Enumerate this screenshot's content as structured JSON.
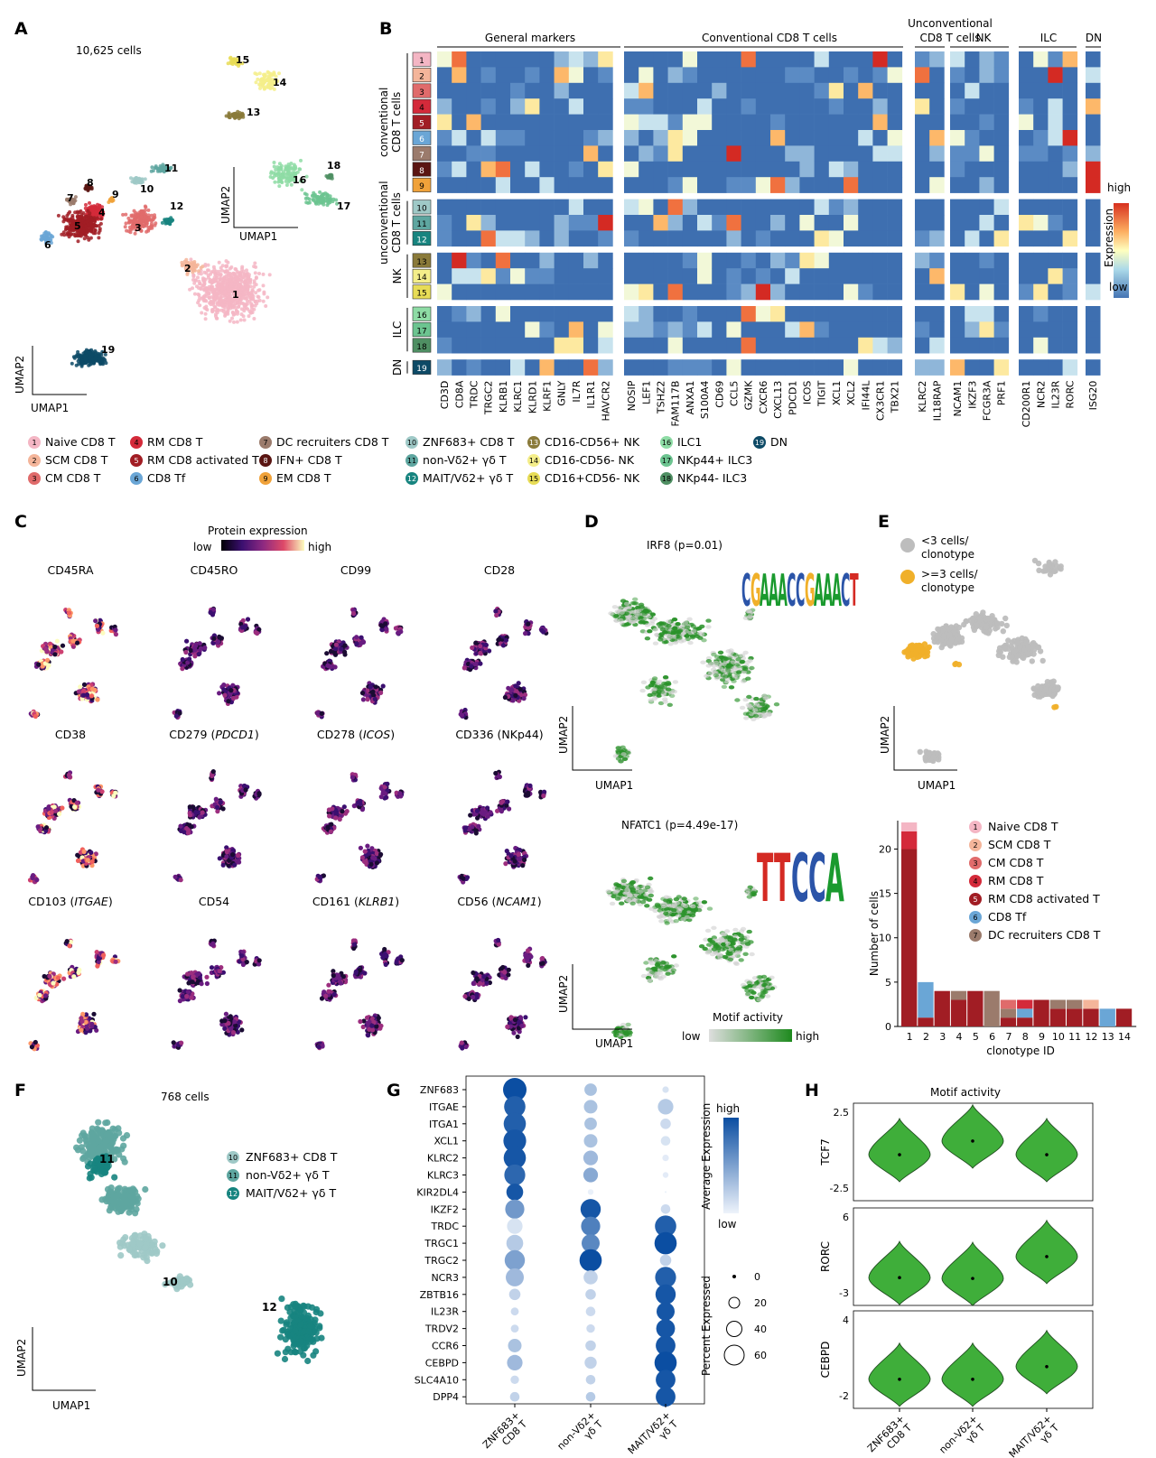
{
  "colors": {
    "c1": "#f4b6c4",
    "c2": "#f4b59a",
    "c3": "#e06b6b",
    "c4": "#d42a3a",
    "c5": "#a11d24",
    "c6": "#6aa6d6",
    "c7": "#9b7b6c",
    "c8": "#5a1512",
    "c9": "#f0a23a",
    "c10": "#9fc9c7",
    "c11": "#5ea6a0",
    "c12": "#17847f",
    "c13": "#8a7a3a",
    "c14": "#f4ee8a",
    "c15": "#e7dc56",
    "c16": "#8edca5",
    "c17": "#6cc490",
    "c18": "#4f8f63",
    "c19": "#0d4a66",
    "green": "#3fae3a",
    "gray": "#bdbdbd",
    "orange": "#f0b02a",
    "dotblue": "#1b5ea8"
  },
  "panel_labels": {
    "A": "A",
    "B": "B",
    "C": "C",
    "D": "D",
    "E": "E",
    "F": "F",
    "G": "G",
    "H": "H"
  },
  "panelA": {
    "cell_count": "10,625 cells",
    "umap1": "UMAP1",
    "umap2": "UMAP2",
    "cluster_numbers": [
      "1",
      "2",
      "3",
      "4",
      "5",
      "6",
      "7",
      "8",
      "9",
      "10",
      "11",
      "12",
      "13",
      "14",
      "15",
      "16",
      "17",
      "18",
      "19"
    ]
  },
  "panelB": {
    "groups": [
      "General markers",
      "Conventional CD8 T cells",
      "Unconventional",
      "CD8 T cells",
      "NK",
      "ILC",
      "DN"
    ],
    "row_groups": [
      "conventional",
      "CD8 T cells",
      "unconventional",
      "CD8 T cells",
      "NK",
      "ILC",
      "DN"
    ],
    "legend_title": "Expression",
    "legend_high": "high",
    "legend_low": "low",
    "genes_general": [
      "CD3D",
      "CD8A",
      "TRDC",
      "TRGC2",
      "KLRB1",
      "KLRC1",
      "KLRD1",
      "KLRF1",
      "GNLY",
      "IL7R",
      "IL1R1",
      "HAVCR2"
    ],
    "genes_conv": [
      "NOSIP",
      "LEF1",
      "TSHZ2",
      "FAM117B",
      "ANXA1",
      "S100A4",
      "CD69",
      "CCL5",
      "GZMK",
      "CXCR6",
      "CXCL13",
      "PDCD1",
      "ICOS",
      "TIGIT",
      "XCL1",
      "XCL2",
      "IFI44L",
      "CX3CR1",
      "TBX21"
    ],
    "genes_unconv": [
      "KLRC2",
      "IL18RAP"
    ],
    "genes_nk": [
      "NCAM1",
      "IKZF3",
      "FCGR3A",
      "PRF1"
    ],
    "genes_ilc": [
      "CD200R1",
      "NCR2",
      "IL23R",
      "RORC"
    ],
    "genes_dn": [
      "ISG20"
    ],
    "rows": [
      "1",
      "2",
      "3",
      "4",
      "5",
      "6",
      "7",
      "8",
      "9",
      "10",
      "11",
      "12",
      "13",
      "14",
      "15",
      "16",
      "17",
      "18",
      "19"
    ]
  },
  "legend": [
    {
      "n": "1",
      "label": "Naive CD8 T"
    },
    {
      "n": "2",
      "label": "SCM CD8 T"
    },
    {
      "n": "3",
      "label": "CM CD8 T"
    },
    {
      "n": "4",
      "label": "RM CD8 T"
    },
    {
      "n": "5",
      "label": "RM CD8 activated T"
    },
    {
      "n": "6",
      "label": "CD8 Tf"
    },
    {
      "n": "7",
      "label": "DC recruiters CD8 T"
    },
    {
      "n": "8",
      "label": "IFN+ CD8 T"
    },
    {
      "n": "9",
      "label": "EM CD8 T"
    },
    {
      "n": "10",
      "label": "ZNF683+ CD8 T"
    },
    {
      "n": "11",
      "label": "non-Vδ2+ γδ T"
    },
    {
      "n": "12",
      "label": "MAIT/Vδ2+ γδ T"
    },
    {
      "n": "13",
      "label": "CD16-CD56+ NK"
    },
    {
      "n": "14",
      "label": "CD16-CD56- NK"
    },
    {
      "n": "15",
      "label": "CD16+CD56- NK"
    },
    {
      "n": "16",
      "label": "ILC1"
    },
    {
      "n": "17",
      "label": "NKp44+ ILC3"
    },
    {
      "n": "18",
      "label": "NKp44- ILC3"
    },
    {
      "n": "19",
      "label": "DN"
    }
  ],
  "panelC": {
    "title": "Protein expression",
    "low": "low",
    "high": "high",
    "plots": [
      {
        "pre": "CD45RA",
        "it": "",
        "post": ""
      },
      {
        "pre": "CD45RO",
        "it": "",
        "post": ""
      },
      {
        "pre": "CD99",
        "it": "",
        "post": ""
      },
      {
        "pre": "CD28",
        "it": "",
        "post": ""
      },
      {
        "pre": "CD38",
        "it": "",
        "post": ""
      },
      {
        "pre": "CD279 (",
        "it": "PDCD1",
        "post": ")"
      },
      {
        "pre": "CD278 (",
        "it": "ICOS",
        "post": ")"
      },
      {
        "pre": "CD336 (NKp44)",
        "it": "",
        "post": ""
      },
      {
        "pre": "CD103 (",
        "it": "ITGAE",
        "post": ")"
      },
      {
        "pre": "CD54",
        "it": "",
        "post": ""
      },
      {
        "pre": "CD161 (",
        "it": "KLRB1",
        "post": ")"
      },
      {
        "pre": "CD56 (",
        "it": "NCAM1",
        "post": ")"
      }
    ]
  },
  "panelD": {
    "title1": "IRF8 (p=0.01)",
    "title2": "NFATC1 (p=4.49e-17)",
    "umap1": "UMAP1",
    "umap2": "UMAP2",
    "legend_title": "Motif activity",
    "low": "low",
    "high": "high",
    "logo1": "CGAAACCGAAACT",
    "logo2": "TTCCA"
  },
  "panelE": {
    "legend_a": "<3 cells/",
    "legend_a2": "clonotype",
    "legend_b": ">=3 cells/",
    "legend_b2": "clonotype",
    "umap1": "UMAP1",
    "umap2": "UMAP2",
    "chart_data": {
      "type": "bar",
      "title": "",
      "xlabel": "clonotype ID",
      "ylabel": "Number of cells",
      "categories": [
        "1",
        "2",
        "3",
        "4",
        "5",
        "6",
        "7",
        "8",
        "9",
        "10",
        "11",
        "12",
        "13",
        "14"
      ],
      "ylim": [
        0,
        23
      ],
      "yticks": [
        "0",
        "5",
        "10",
        "15",
        "20"
      ],
      "series": [
        {
          "name": "Naive CD8 T",
          "key": "c1",
          "values": [
            1,
            0,
            0,
            0,
            0,
            0,
            0,
            0,
            0,
            0,
            0,
            0,
            0,
            0
          ]
        },
        {
          "name": "SCM CD8 T",
          "key": "c2",
          "values": [
            0,
            0,
            0,
            0,
            0,
            0,
            0,
            0,
            0,
            0,
            0,
            1,
            0,
            0
          ]
        },
        {
          "name": "CM CD8 T",
          "key": "c3",
          "values": [
            0,
            0,
            0,
            0,
            0,
            0,
            1,
            0,
            0,
            0,
            0,
            0,
            0,
            0
          ]
        },
        {
          "name": "RM CD8 T",
          "key": "c4",
          "values": [
            2,
            0,
            0,
            0,
            0,
            0,
            0,
            1,
            0,
            0,
            0,
            0,
            0,
            0
          ]
        },
        {
          "name": "RM CD8 activated T",
          "key": "c5",
          "values": [
            20,
            1,
            4,
            3,
            4,
            0,
            1,
            1,
            3,
            2,
            2,
            2,
            0,
            2
          ]
        },
        {
          "name": "CD8 Tf",
          "key": "c6",
          "values": [
            0,
            4,
            0,
            0,
            0,
            0,
            0,
            1,
            0,
            0,
            0,
            0,
            2,
            0
          ]
        },
        {
          "name": "DC recruiters CD8 T",
          "key": "c7",
          "values": [
            0,
            0,
            0,
            1,
            0,
            4,
            1,
            0,
            0,
            1,
            1,
            0,
            0,
            0
          ]
        }
      ]
    }
  },
  "panelF": {
    "cell_count": "768 cells",
    "umap1": "UMAP1",
    "umap2": "UMAP2",
    "legend": [
      {
        "n": "10",
        "label": "ZNF683+ CD8 T"
      },
      {
        "n": "11",
        "label": "non-Vδ2+ γδ T"
      },
      {
        "n": "12",
        "label": "MAIT/Vδ2+ γδ T"
      }
    ],
    "labels": [
      "11",
      "10",
      "12"
    ]
  },
  "panelG": {
    "genes": [
      "ZNF683",
      "ITGAE",
      "ITGA1",
      "XCL1",
      "KLRC2",
      "KLRC3",
      "KIR2DL4",
      "IKZF2",
      "TRDC",
      "TRGC1",
      "TRGC2",
      "NCR3",
      "ZBTB16",
      "IL23R",
      "TRDV2",
      "CCR6",
      "CEBPD",
      "SLC4A10",
      "DPP4"
    ],
    "groups": [
      [
        "ZNF683+",
        "CD8 T"
      ],
      [
        "non-Vδ2+",
        "γδ T"
      ],
      [
        "MAIT/Vδ2+",
        "γδ T"
      ]
    ],
    "avg_title": "Average Expression",
    "high": "high",
    "low": "low",
    "pct_title": "Percent Expressed",
    "pct_ticks": [
      "0",
      "20",
      "40",
      "60"
    ],
    "expr": [
      [
        1,
        0.3,
        0.1
      ],
      [
        0.9,
        0.3,
        0.25
      ],
      [
        0.9,
        0.3,
        0.15
      ],
      [
        0.95,
        0.3,
        0.1
      ],
      [
        0.95,
        0.35,
        0.05
      ],
      [
        0.85,
        0.45,
        0.05
      ],
      [
        0.95,
        0.02,
        0.02
      ],
      [
        0.55,
        0.95,
        0.15
      ],
      [
        0.1,
        0.7,
        0.9
      ],
      [
        0.25,
        0.65,
        1
      ],
      [
        0.5,
        1,
        0.2
      ],
      [
        0.35,
        0.2,
        0.9
      ],
      [
        0.2,
        0.2,
        0.95
      ],
      [
        0.15,
        0.15,
        0.95
      ],
      [
        0.15,
        0.15,
        0.95
      ],
      [
        0.3,
        0.2,
        0.95
      ],
      [
        0.35,
        0.2,
        1
      ],
      [
        0.15,
        0.2,
        0.95
      ],
      [
        0.2,
        0.25,
        0.95
      ]
    ],
    "pct": [
      [
        62,
        15,
        3
      ],
      [
        50,
        18,
        25
      ],
      [
        55,
        15,
        10
      ],
      [
        58,
        18,
        8
      ],
      [
        55,
        22,
        3
      ],
      [
        48,
        22,
        2
      ],
      [
        30,
        2,
        0
      ],
      [
        40,
        45,
        8
      ],
      [
        25,
        40,
        50
      ],
      [
        30,
        35,
        55
      ],
      [
        45,
        55,
        12
      ],
      [
        35,
        20,
        48
      ],
      [
        12,
        10,
        45
      ],
      [
        5,
        8,
        35
      ],
      [
        5,
        6,
        38
      ],
      [
        18,
        10,
        42
      ],
      [
        25,
        14,
        55
      ],
      [
        6,
        8,
        42
      ],
      [
        8,
        8,
        42
      ]
    ]
  },
  "panelH": {
    "title": "Motif activity",
    "rows": [
      {
        "name": "TCF7",
        "top": "2.5",
        "bottom": "-2.5"
      },
      {
        "name": "RORC",
        "top": "6",
        "bottom": "-3"
      },
      {
        "name": "CEBPD",
        "top": "4",
        "bottom": "-2"
      }
    ],
    "groups": [
      [
        "ZNF683+",
        "CD8 T"
      ],
      [
        "non-Vδ2+",
        "γδ T"
      ],
      [
        "MAIT/Vδ2+",
        "γδ T"
      ]
    ],
    "medians": [
      [
        -0.3,
        0.6,
        -0.3
      ],
      [
        -1.2,
        -1.3,
        1.3
      ],
      [
        -0.7,
        -0.7,
        0.3
      ]
    ]
  }
}
